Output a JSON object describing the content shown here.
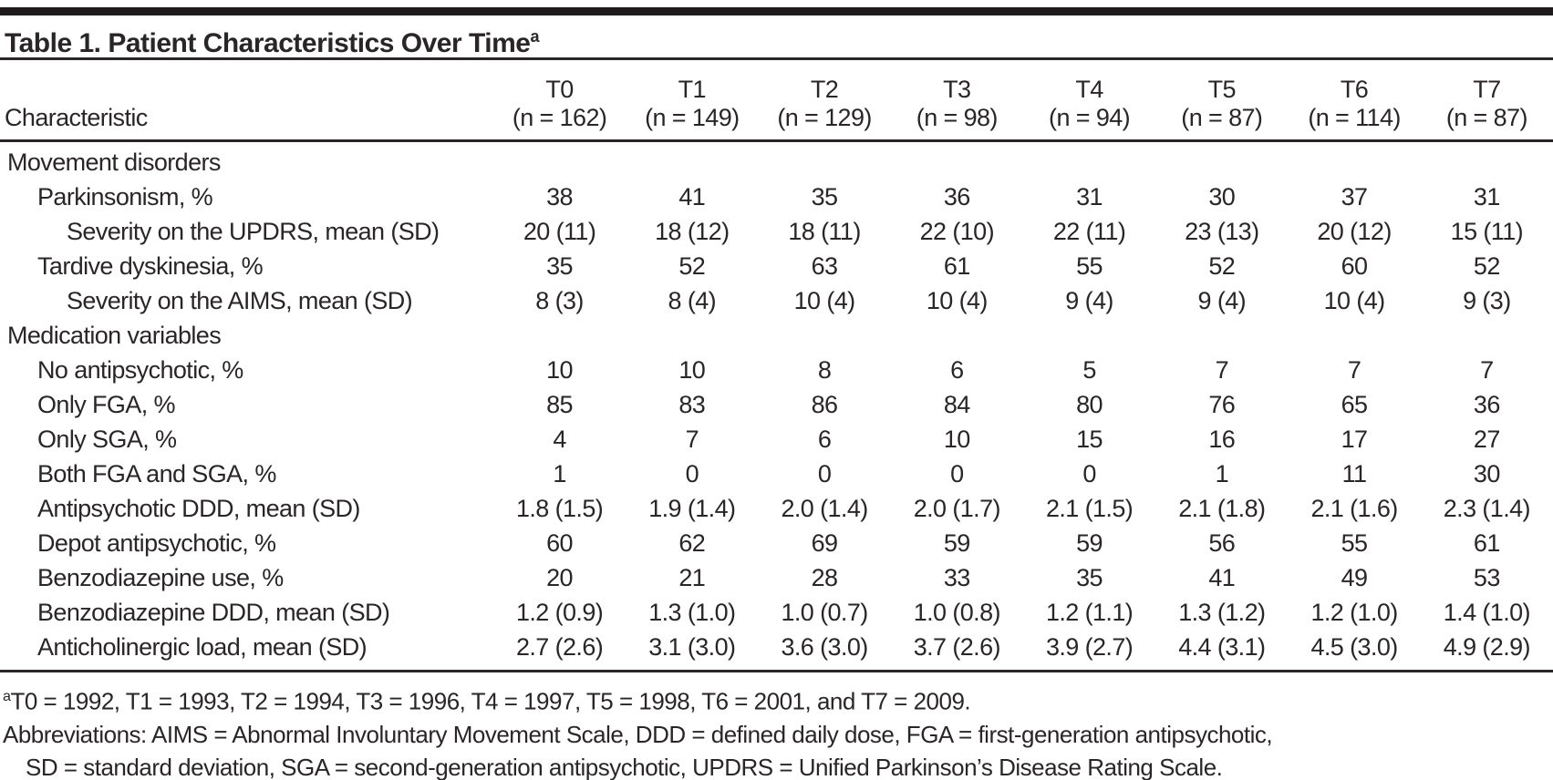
{
  "table": {
    "title": "Table 1. Patient Characteristics Over Time",
    "title_marker": "a",
    "colors": {
      "text": "#2a2627",
      "rules": "#2a2627",
      "top_bar": "#1f1b1c",
      "background": "#ffffff"
    },
    "header": {
      "characteristic_label": "Characteristic",
      "columns": [
        {
          "t": "T0",
          "n": "(n = 162)"
        },
        {
          "t": "T1",
          "n": "(n = 149)"
        },
        {
          "t": "T2",
          "n": "(n = 129)"
        },
        {
          "t": "T3",
          "n": "(n = 98)"
        },
        {
          "t": "T4",
          "n": "(n = 94)"
        },
        {
          "t": "T5",
          "n": "(n = 87)"
        },
        {
          "t": "T6",
          "n": "(n = 114)"
        },
        {
          "t": "T7",
          "n": "(n = 87)"
        }
      ]
    },
    "rows": [
      {
        "label": "Movement disorders",
        "indent": 0,
        "section": true,
        "values": []
      },
      {
        "label": "Parkinsonism, %",
        "indent": 1,
        "section": false,
        "values": [
          "38",
          "41",
          "35",
          "36",
          "31",
          "30",
          "37",
          "31"
        ]
      },
      {
        "label": "Severity on the UPDRS, mean (SD)",
        "indent": 2,
        "section": false,
        "values": [
          "20 (11)",
          "18 (12)",
          "18 (11)",
          "22 (10)",
          "22 (11)",
          "23 (13)",
          "20 (12)",
          "15 (11)"
        ]
      },
      {
        "label": "Tardive dyskinesia, %",
        "indent": 1,
        "section": false,
        "values": [
          "35",
          "52",
          "63",
          "61",
          "55",
          "52",
          "60",
          "52"
        ]
      },
      {
        "label": "Severity on the AIMS, mean (SD)",
        "indent": 2,
        "section": false,
        "values": [
          "8 (3)",
          "8 (4)",
          "10 (4)",
          "10 (4)",
          "9 (4)",
          "9 (4)",
          "10 (4)",
          "9 (3)"
        ]
      },
      {
        "label": "Medication variables",
        "indent": 0,
        "section": true,
        "values": []
      },
      {
        "label": "No antipsychotic, %",
        "indent": 1,
        "section": false,
        "values": [
          "10",
          "10",
          "8",
          "6",
          "5",
          "7",
          "7",
          "7"
        ]
      },
      {
        "label": "Only FGA, %",
        "indent": 1,
        "section": false,
        "values": [
          "85",
          "83",
          "86",
          "84",
          "80",
          "76",
          "65",
          "36"
        ]
      },
      {
        "label": "Only SGA, %",
        "indent": 1,
        "section": false,
        "values": [
          "4",
          "7",
          "6",
          "10",
          "15",
          "16",
          "17",
          "27"
        ]
      },
      {
        "label": "Both FGA and SGA, %",
        "indent": 1,
        "section": false,
        "values": [
          "1",
          "0",
          "0",
          "0",
          "0",
          "1",
          "11",
          "30"
        ]
      },
      {
        "label": "Antipsychotic DDD, mean (SD)",
        "indent": 1,
        "section": false,
        "values": [
          "1.8 (1.5)",
          "1.9 (1.4)",
          "2.0 (1.4)",
          "2.0 (1.7)",
          "2.1 (1.5)",
          "2.1 (1.8)",
          "2.1 (1.6)",
          "2.3 (1.4)"
        ]
      },
      {
        "label": "Depot antipsychotic, %",
        "indent": 1,
        "section": false,
        "values": [
          "60",
          "62",
          "69",
          "59",
          "59",
          "56",
          "55",
          "61"
        ]
      },
      {
        "label": "Benzodiazepine use, %",
        "indent": 1,
        "section": false,
        "values": [
          "20",
          "21",
          "28",
          "33",
          "35",
          "41",
          "49",
          "53"
        ]
      },
      {
        "label": "Benzodiazepine DDD, mean (SD)",
        "indent": 1,
        "section": false,
        "values": [
          "1.2 (0.9)",
          "1.3 (1.0)",
          "1.0 (0.7)",
          "1.0 (0.8)",
          "1.2 (1.1)",
          "1.3 (1.2)",
          "1.2 (1.0)",
          "1.4 (1.0)"
        ]
      },
      {
        "label": "Anticholinergic load, mean (SD)",
        "indent": 1,
        "section": false,
        "values": [
          "2.7 (2.6)",
          "3.1 (3.0)",
          "3.6 (3.0)",
          "3.7 (2.6)",
          "3.9 (2.7)",
          "4.4 (3.1)",
          "4.5 (3.0)",
          "4.9 (2.9)"
        ]
      }
    ],
    "footnotes": [
      {
        "marker": "a",
        "lines": [
          "T0 = 1992, T1 = 1993, T2 = 1994, T3 = 1996, T4 = 1997, T5 = 1998, T6 = 2001, and T7 = 2009."
        ]
      },
      {
        "marker": "",
        "lines": [
          "Abbreviations: AIMS = Abnormal Involuntary Movement Scale, DDD = defined daily dose, FGA = first-generation antipsychotic,",
          "SD = standard deviation, SGA = second-generation antipsychotic, UPDRS = Unified Parkinson’s Disease Rating Scale."
        ]
      }
    ]
  }
}
